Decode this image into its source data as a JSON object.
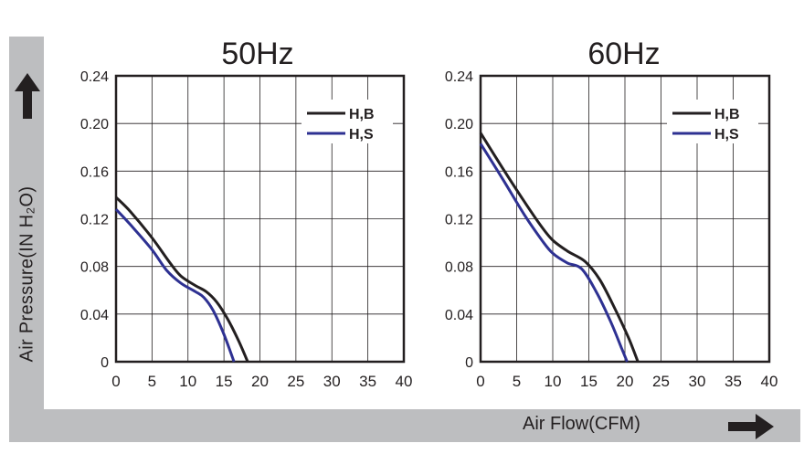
{
  "axis_labels": {
    "y": "Air Pressure(IN H₂O)",
    "x": "Air Flow(CFM)"
  },
  "icons": {
    "up": "arrow-up-icon",
    "right": "arrow-right-icon"
  },
  "colors": {
    "hb": "#231f20",
    "hs": "#2e3192",
    "band": "#bdbec0"
  },
  "chart_data": [
    {
      "type": "line",
      "title": "50Hz",
      "xlim": [
        0,
        40
      ],
      "ylim": [
        0,
        0.24
      ],
      "xticks": [
        "0",
        "5",
        "10",
        "15",
        "20",
        "25",
        "30",
        "35",
        "40"
      ],
      "yticks": [
        "0",
        "0.04",
        "0.08",
        "0.12",
        "0.16",
        "0.20",
        "0.24"
      ],
      "grid": true,
      "legend_position": "top-right",
      "series": [
        {
          "name": "H,B",
          "color": "#231f20",
          "points": [
            [
              0,
              0.138
            ],
            [
              2,
              0.126
            ],
            [
              5,
              0.104
            ],
            [
              7.5,
              0.083
            ],
            [
              9,
              0.072
            ],
            [
              11,
              0.064
            ],
            [
              12.5,
              0.059
            ],
            [
              14,
              0.05
            ],
            [
              15.5,
              0.036
            ],
            [
              17,
              0.018
            ],
            [
              18.3,
              0
            ]
          ]
        },
        {
          "name": "H,S",
          "color": "#2e3192",
          "points": [
            [
              0,
              0.128
            ],
            [
              2,
              0.115
            ],
            [
              5,
              0.094
            ],
            [
              7,
              0.077
            ],
            [
              9,
              0.066
            ],
            [
              11,
              0.059
            ],
            [
              12.2,
              0.054
            ],
            [
              13.5,
              0.043
            ],
            [
              15,
              0.023
            ],
            [
              16.4,
              0
            ]
          ]
        }
      ]
    },
    {
      "type": "line",
      "title": "60Hz",
      "xlim": [
        0,
        40
      ],
      "ylim": [
        0,
        0.24
      ],
      "xticks": [
        "0",
        "5",
        "10",
        "15",
        "20",
        "25",
        "30",
        "35",
        "40"
      ],
      "yticks": [
        "0",
        "0.04",
        "0.08",
        "0.12",
        "0.16",
        "0.20",
        "0.24"
      ],
      "grid": true,
      "legend_position": "top-right",
      "series": [
        {
          "name": "H,B",
          "color": "#231f20",
          "points": [
            [
              0,
              0.192
            ],
            [
              3,
              0.163
            ],
            [
              6,
              0.135
            ],
            [
              8.5,
              0.113
            ],
            [
              10,
              0.102
            ],
            [
              12,
              0.093
            ],
            [
              14.5,
              0.084
            ],
            [
              16.5,
              0.069
            ],
            [
              18.5,
              0.046
            ],
            [
              20.5,
              0.02
            ],
            [
              21.8,
              0
            ]
          ]
        },
        {
          "name": "H,S",
          "color": "#2e3192",
          "points": [
            [
              0,
              0.183
            ],
            [
              3,
              0.154
            ],
            [
              6,
              0.124
            ],
            [
              8.5,
              0.102
            ],
            [
              10,
              0.091
            ],
            [
              12,
              0.083
            ],
            [
              14,
              0.078
            ],
            [
              16,
              0.059
            ],
            [
              18,
              0.034
            ],
            [
              19.5,
              0.012
            ],
            [
              20.3,
              0
            ]
          ]
        }
      ]
    }
  ]
}
